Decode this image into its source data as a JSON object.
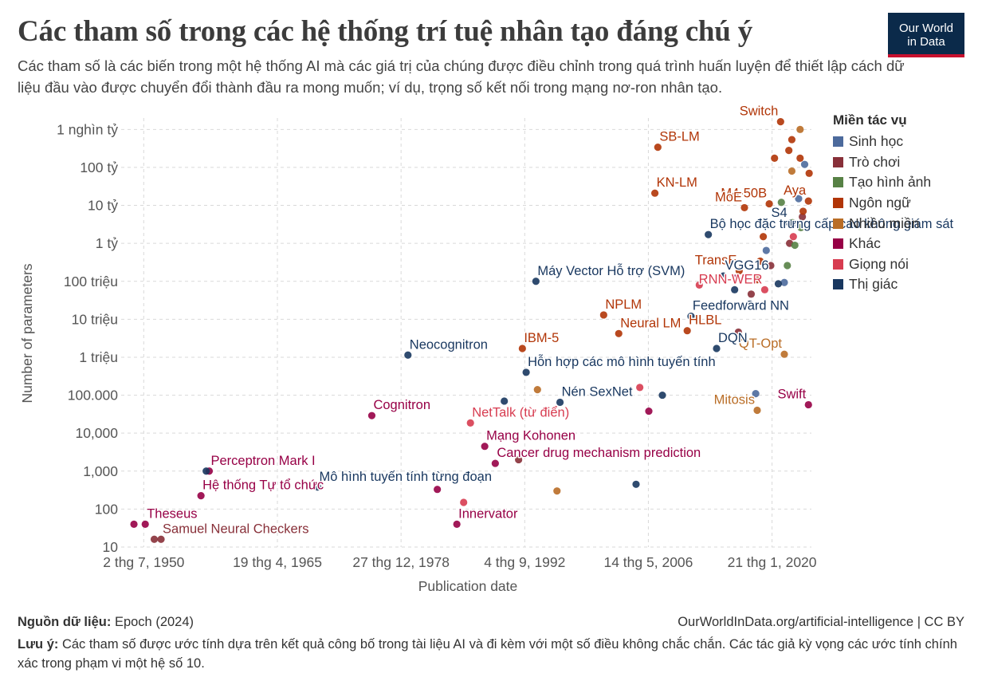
{
  "header": {
    "title": "Các tham số trong các hệ thống trí tuệ nhân tạo đáng chú ý",
    "subtitle": "Các tham số là các biến trong một hệ thống AI mà các giá trị của chúng được điều chỉnh trong quá trình huấn luyện để thiết lập cách dữ liệu đầu vào được chuyển đổi thành đầu ra mong muốn; ví dụ, trọng số kết nối trong mạng nơ-ron nhân tạo.",
    "logo_line1": "Our World",
    "logo_line2": "in Data"
  },
  "footer": {
    "source_label": "Nguồn dữ liệu:",
    "source_text": "Epoch (2024)",
    "credit": "OurWorldInData.org/artificial-intelligence | CC BY",
    "note_label": "Lưu ý:",
    "note_text": "Các tham số được ước tính dựa trên kết quả công bố trong tài liệu AI và đi kèm với một số điều không chắc chắn. Các tác giả kỳ vọng các ước tính chính xác trong phạm vi một hệ số 10."
  },
  "chart_data": {
    "type": "scatter",
    "title": "Các tham số trong các hệ thống trí tuệ nhân tạo đáng chú ý",
    "xlabel": "Publication date",
    "ylabel": "Number of parameters",
    "y_scale": "log",
    "xlim": [
      "1948-01-01",
      "2024-06-01"
    ],
    "ylim": [
      10,
      2000000000000
    ],
    "grid": true,
    "x_ticks": [
      {
        "date": "1950-07-02",
        "label": "2 thg 7, 1950"
      },
      {
        "date": "1965-04-19",
        "label": "19 thg 4, 1965"
      },
      {
        "date": "1978-12-27",
        "label": "27 thg 12, 1978"
      },
      {
        "date": "1992-09-04",
        "label": "4 thg 9, 1992"
      },
      {
        "date": "2006-05-14",
        "label": "14 thg 5, 2006"
      },
      {
        "date": "2020-01-21",
        "label": "21 thg 1, 2020"
      }
    ],
    "y_ticks": [
      {
        "value": 10,
        "label": "10"
      },
      {
        "value": 100,
        "label": "100"
      },
      {
        "value": 1000,
        "label": "1,000"
      },
      {
        "value": 10000,
        "label": "10,000"
      },
      {
        "value": 100000,
        "label": "100.000"
      },
      {
        "value": 1000000,
        "label": "1 triệu"
      },
      {
        "value": 10000000,
        "label": "10 triệu"
      },
      {
        "value": 100000000,
        "label": "100 triệu"
      },
      {
        "value": 1000000000,
        "label": "1 tỷ"
      },
      {
        "value": 10000000000,
        "label": "10 tỷ"
      },
      {
        "value": 100000000000,
        "label": "100 tỷ"
      },
      {
        "value": 1000000000000,
        "label": "1 nghìn tỷ"
      }
    ],
    "legend_title": "Miền tác vụ",
    "legend_position": "right",
    "series": [
      {
        "name": "Sinh học",
        "color": "#4c6a9c",
        "points": [
          {
            "x": "2021-06-01",
            "y": 93000000,
            "label": ""
          },
          {
            "x": "2023-01-01",
            "y": 15000000000,
            "label": ""
          },
          {
            "x": "2019-06-01",
            "y": 650000000,
            "label": ""
          },
          {
            "x": "2022-04-01",
            "y": 3000000000,
            "label": ""
          },
          {
            "x": "2018-04-01",
            "y": 110000,
            "label": ""
          },
          {
            "x": "2023-09-01",
            "y": 120000000000,
            "label": ""
          }
        ]
      },
      {
        "name": "Trò chơi",
        "color": "#883039",
        "points": [
          {
            "x": "1952-06-01",
            "y": 16,
            "label": "Samuel Neural Checkers"
          },
          {
            "x": "1951-09-01",
            "y": 16,
            "label": ""
          },
          {
            "x": "1992-01-01",
            "y": 2000,
            "label": ""
          },
          {
            "x": "2016-05-01",
            "y": 4600000,
            "label": ""
          },
          {
            "x": "2017-10-01",
            "y": 46000000,
            "label": ""
          },
          {
            "x": "2019-12-01",
            "y": 260000000,
            "label": ""
          },
          {
            "x": "2022-01-01",
            "y": 1000000000,
            "label": ""
          },
          {
            "x": "2023-06-01",
            "y": 5000000000,
            "label": ""
          }
        ]
      },
      {
        "name": "Tạo hình ảnh",
        "color": "#578145",
        "points": [
          {
            "x": "2021-02-01",
            "y": 12000000000,
            "label": ""
          },
          {
            "x": "2022-05-01",
            "y": 3500000000,
            "label": ""
          },
          {
            "x": "2022-08-01",
            "y": 890000000,
            "label": ""
          },
          {
            "x": "2023-04-01",
            "y": 2600000000,
            "label": ""
          },
          {
            "x": "2021-10-01",
            "y": 260000000,
            "label": ""
          }
        ]
      },
      {
        "name": "Ngôn ngữ",
        "color": "#b13507",
        "points": [
          {
            "x": "2003-02-01",
            "y": 4200000,
            "label": "Neural LM"
          },
          {
            "x": "2007-06-01",
            "y": 340000000000,
            "label": "SB-LM"
          },
          {
            "x": "2007-02-01",
            "y": 21000000000,
            "label": "KN-LM"
          },
          {
            "x": "2021-01-01",
            "y": 1600000000000,
            "label": "Switch"
          },
          {
            "x": "2019-10-01",
            "y": 11000000000,
            "label": "M4-50B"
          },
          {
            "x": "2017-01-01",
            "y": 8700000000,
            "label": "MoE"
          },
          {
            "x": "2024-02-01",
            "y": 13000000000,
            "label": "Aya"
          },
          {
            "x": "2016-06-01",
            "y": 190000000,
            "label": "TransE"
          },
          {
            "x": "2010-09-01",
            "y": 5000000,
            "label": "HLBL"
          },
          {
            "x": "2001-06-01",
            "y": 13000000,
            "label": "NPLM"
          },
          {
            "x": "1992-06-01",
            "y": 1700000,
            "label": "IBM-5"
          },
          {
            "x": "2022-04-01",
            "y": 540000000000,
            "label": ""
          },
          {
            "x": "2023-03-01",
            "y": 175000000000,
            "label": ""
          },
          {
            "x": "2020-05-01",
            "y": 175000000000,
            "label": ""
          },
          {
            "x": "2021-12-01",
            "y": 280000000000,
            "label": ""
          },
          {
            "x": "2019-02-01",
            "y": 1500000000,
            "label": ""
          },
          {
            "x": "2018-10-01",
            "y": 340000000,
            "label": ""
          },
          {
            "x": "2018-06-01",
            "y": 110000000,
            "label": ""
          },
          {
            "x": "2024-03-01",
            "y": 70000000000,
            "label": ""
          },
          {
            "x": "2023-07-01",
            "y": 7000000000,
            "label": ""
          }
        ]
      },
      {
        "name": "Nhiều miền",
        "color": "#b96d26",
        "points": [
          {
            "x": "2018-06-01",
            "y": 40000,
            "label": "Mitosis"
          },
          {
            "x": "2021-06-01",
            "y": 1200000,
            "label": "QT-Opt"
          },
          {
            "x": "2022-04-01",
            "y": 80000000000,
            "label": ""
          },
          {
            "x": "2023-03-01",
            "y": 1000000000000,
            "label": ""
          },
          {
            "x": "1996-04-01",
            "y": 300,
            "label": ""
          },
          {
            "x": "1994-02-01",
            "y": 140000,
            "label": ""
          }
        ]
      },
      {
        "name": "Khác",
        "color": "#970046",
        "points": [
          {
            "x": "1957-10-01",
            "y": 1000,
            "label": "Perceptron Mark I"
          },
          {
            "x": "1950-09-01",
            "y": 40,
            "label": "Theseus"
          },
          {
            "x": "1985-03-01",
            "y": 40,
            "label": "Innervator"
          },
          {
            "x": "1975-10-01",
            "y": 29000,
            "label": "Cognitron"
          },
          {
            "x": "1956-11-01",
            "y": 225,
            "label": "Hệ thống Tự tổ chức"
          },
          {
            "x": "1988-04-01",
            "y": 4500,
            "label": "Mạng Kohonen"
          },
          {
            "x": "2024-02-01",
            "y": 56000,
            "label": "Swift"
          },
          {
            "x": "1989-06-01",
            "y": 1600,
            "label": "Cancer drug mechanism prediction"
          },
          {
            "x": "1983-01-01",
            "y": 330,
            "label": ""
          },
          {
            "x": "1949-06-01",
            "y": 40,
            "label": ""
          },
          {
            "x": "2016-01-01",
            "y": 120000000,
            "label": ""
          },
          {
            "x": "2006-06-01",
            "y": 38000,
            "label": ""
          }
        ]
      },
      {
        "name": "Giọng nói",
        "color": "#d73c50",
        "points": [
          {
            "x": "1986-09-01",
            "y": 18600,
            "label": "NetTalk (từ điển)"
          },
          {
            "x": "2019-04-01",
            "y": 60000000,
            "label": "RNN-WER"
          },
          {
            "x": "1985-12-01",
            "y": 150,
            "label": ""
          },
          {
            "x": "2005-06-01",
            "y": 160000,
            "label": ""
          },
          {
            "x": "2022-06-01",
            "y": 1500000000,
            "label": ""
          },
          {
            "x": "2012-01-01",
            "y": 80000000,
            "label": ""
          }
        ]
      },
      {
        "name": "Thị giác",
        "color": "#18375f",
        "points": [
          {
            "x": "1979-10-01",
            "y": 1140000,
            "label": "Neocognitron"
          },
          {
            "x": "1993-12-01",
            "y": 100000000,
            "label": "Máy Vector Hỗ trợ (SVM)"
          },
          {
            "x": "2013-01-01",
            "y": 1700000000,
            "label": "Bộ học đặc trưng cấp cao không giám sát"
          },
          {
            "x": "2014-09-01",
            "y": 138000000,
            "label": "VGG16"
          },
          {
            "x": "2011-02-01",
            "y": 12000000,
            "label": "Feedforward NN"
          },
          {
            "x": "2013-12-01",
            "y": 1700000,
            "label": "DQN"
          },
          {
            "x": "2022-01-01",
            "y": 3400000000,
            "label": "S4"
          },
          {
            "x": "1992-11-01",
            "y": 400000,
            "label": "Hỗn hợp các mô hình tuyến tính"
          },
          {
            "x": "1996-08-01",
            "y": 65000,
            "label": "Nén SexNet"
          },
          {
            "x": "1969-10-01",
            "y": 380,
            "label": "Mô hình tuyến tính từng đoạn"
          },
          {
            "x": "1957-06-01",
            "y": 1000,
            "label": ""
          },
          {
            "x": "1990-06-01",
            "y": 70000,
            "label": ""
          },
          {
            "x": "2005-01-01",
            "y": 450,
            "label": ""
          },
          {
            "x": "2007-12-01",
            "y": 100000,
            "label": ""
          },
          {
            "x": "2015-12-01",
            "y": 60000000,
            "label": ""
          },
          {
            "x": "2017-08-01",
            "y": 25000000,
            "label": ""
          },
          {
            "x": "2020-10-01",
            "y": 86000000,
            "label": ""
          }
        ]
      }
    ]
  }
}
